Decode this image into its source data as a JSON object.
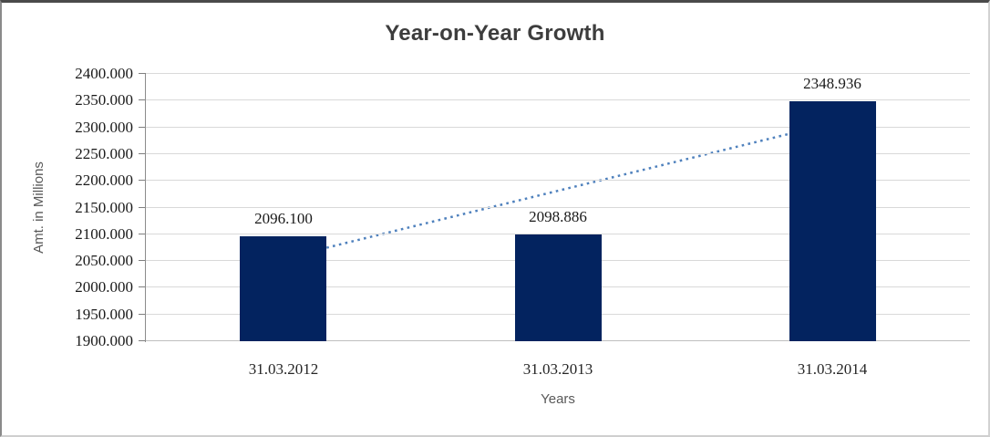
{
  "chart_data": {
    "type": "bar",
    "title": "Year-on-Year Growth",
    "xlabel": "Years",
    "ylabel": "Amt. in Millions",
    "categories": [
      "31.03.2012",
      "31.03.2013",
      "31.03.2014"
    ],
    "values": [
      2096.1,
      2098.886,
      2348.936
    ],
    "data_labels": [
      "2096.100",
      "2098.886",
      "2348.936"
    ],
    "ylim": [
      1900,
      2400
    ],
    "ytick_step": 50,
    "ytick_labels": [
      "2400.000",
      "2350.000",
      "2300.000",
      "2250.000",
      "2200.000",
      "2150.000",
      "2100.000",
      "2050.000",
      "2000.000",
      "1950.000",
      "1900.000"
    ],
    "grid": true,
    "legend": false,
    "trendline": {
      "type": "linear",
      "style": "dotted",
      "start_value": 2054.9,
      "end_value": 2307.8,
      "color": "#4f81bd"
    },
    "colors": {
      "bar": "#03235f",
      "gridline": "#d9d9d9",
      "x_axis_line": "#bfbfbf",
      "y_axis_line": "#8c8c8c",
      "tick": "#7f7f7f",
      "title_text": "#3d3d3d",
      "axis_title_text": "#595959",
      "label_text": "#1a1a1a"
    }
  }
}
